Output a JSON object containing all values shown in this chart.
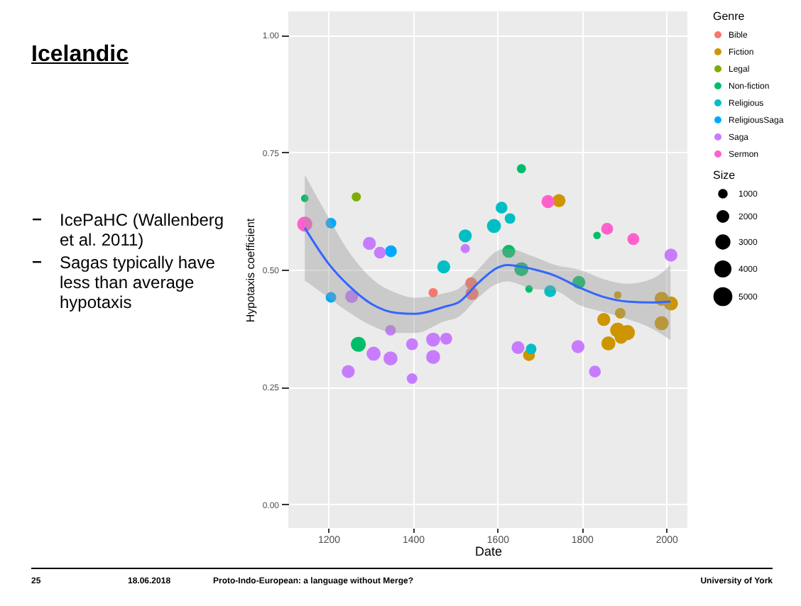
{
  "chart_data": {
    "type": "bubble",
    "title": "Icelandic",
    "xlabel": "Date",
    "ylabel": "Hypotaxis coefficient",
    "legend_title": "Genre",
    "annotations": [
      "Size",
      "IcePaHC (Wallenberg et al. 2011)",
      "Sagas typically have less than average hypotaxis",
      "25",
      "18.06.2018",
      "Proto-Indo-European: a language without Merge?",
      "University of York"
    ],
    "xlim": [
      1105,
      2050
    ],
    "xticks": [
      1200,
      1400,
      1600,
      1800,
      2000
    ],
    "ylim": [
      -0.05,
      1.05
    ],
    "yticks": [
      {
        "value": 0,
        "label": "0.00"
      },
      {
        "value": 0.25,
        "label": "0.25"
      },
      {
        "value": 0.5,
        "label": "0.50"
      },
      {
        "value": 0.75,
        "label": "0.75"
      },
      {
        "value": 1,
        "label": "1.00"
      }
    ],
    "grid": true,
    "legend": "right",
    "size_legend": [
      1000,
      2000,
      3000,
      4000,
      5000
    ],
    "series": [
      {
        "name": "Bible",
        "color": "#f8766d",
        "x": [
          1448,
          1538,
          1540
        ],
        "values": [
          0.451,
          0.471,
          0.449
        ],
        "sizes": [
          1500,
          2500,
          3000
        ]
      },
      {
        "name": "Fiction",
        "color": "#cd9600",
        "x": [
          1746,
          1885,
          1852,
          1891,
          1989,
          2011,
          1989,
          1885,
          1908,
          1893,
          1863,
          1675
        ],
        "values": [
          0.647,
          0.446,
          0.394,
          0.407,
          0.438,
          0.428,
          0.386,
          0.371,
          0.366,
          0.356,
          0.343,
          0.318
        ],
        "sizes": [
          3000,
          1000,
          3000,
          2000,
          3500,
          3500,
          3500,
          4000,
          4000,
          3000,
          3500,
          2500
        ]
      },
      {
        "name": "Legal",
        "color": "#7cae00",
        "x": [
          1266
        ],
        "values": [
          0.655
        ],
        "sizes": [
          1500
        ]
      },
      {
        "name": "Non-fiction",
        "color": "#00be67",
        "x": [
          1144,
          1271,
          1657,
          1627,
          1657,
          1675,
          1793,
          1836
        ],
        "values": [
          0.652,
          0.341,
          0.715,
          0.539,
          0.501,
          0.459,
          0.473,
          0.573
        ],
        "sizes": [
          1000,
          4000,
          1500,
          3000,
          3500,
          1000,
          3000,
          1000
        ]
      },
      {
        "name": "Religious",
        "color": "#00bfc4",
        "x": [
          1473,
          1524,
          1592,
          1610,
          1630,
          1725,
          1680
        ],
        "values": [
          0.506,
          0.572,
          0.593,
          0.632,
          0.609,
          0.454,
          0.331
        ],
        "sizes": [
          3000,
          3000,
          3500,
          2500,
          2000,
          2500,
          2000
        ]
      },
      {
        "name": "ReligiousSaga",
        "color": "#00a9ff",
        "x": [
          1206,
          1206,
          1348
        ],
        "values": [
          0.599,
          0.441,
          0.539
        ],
        "sizes": [
          2000,
          2000,
          2500
        ]
      },
      {
        "name": "Saga",
        "color": "#c77cff",
        "x": [
          1255,
          1297,
          1322,
          1347,
          1247,
          1307,
          1347,
          1398,
          1398,
          1448,
          1448,
          1479,
          1524,
          1649,
          1791,
          1831,
          2011
        ],
        "values": [
          0.443,
          0.556,
          0.536,
          0.371,
          0.283,
          0.321,
          0.311,
          0.341,
          0.268,
          0.351,
          0.314,
          0.353,
          0.545,
          0.334,
          0.336,
          0.283,
          0.531
        ],
        "sizes": [
          3000,
          3000,
          2500,
          2000,
          3000,
          3500,
          3500,
          2500,
          2000,
          3500,
          3500,
          2500,
          1500,
          3000,
          3000,
          2500,
          3000
        ]
      },
      {
        "name": "Sermon",
        "color": "#ff61cc",
        "x": [
          1144,
          1720,
          1860,
          1922
        ],
        "values": [
          0.597,
          0.645,
          0.587,
          0.565
        ],
        "sizes": [
          4000,
          3000,
          2500,
          2500
        ]
      },
      {
        "type": "line",
        "color": "#3366ff",
        "x": [
          1144,
          1201,
          1247,
          1304,
          1361,
          1406,
          1475,
          1509,
          1554,
          1600,
          1623,
          1680,
          1737,
          1794,
          1851,
          1908,
          1965,
          2010
        ],
        "values": [
          0.589,
          0.512,
          0.467,
          0.426,
          0.408,
          0.406,
          0.421,
          0.431,
          0.471,
          0.504,
          0.51,
          0.502,
          0.487,
          0.462,
          0.442,
          0.432,
          0.43,
          0.432
        ],
        "lower": [
          0.477,
          0.44,
          0.41,
          0.38,
          0.365,
          0.365,
          0.39,
          0.4,
          0.44,
          0.47,
          0.475,
          0.46,
          0.455,
          0.425,
          0.41,
          0.395,
          0.375,
          0.35
        ],
        "upper": [
          0.702,
          0.61,
          0.54,
          0.48,
          0.45,
          0.44,
          0.45,
          0.46,
          0.5,
          0.54,
          0.545,
          0.53,
          0.51,
          0.5,
          0.48,
          0.47,
          0.48,
          0.51
        ]
      }
    ]
  }
}
